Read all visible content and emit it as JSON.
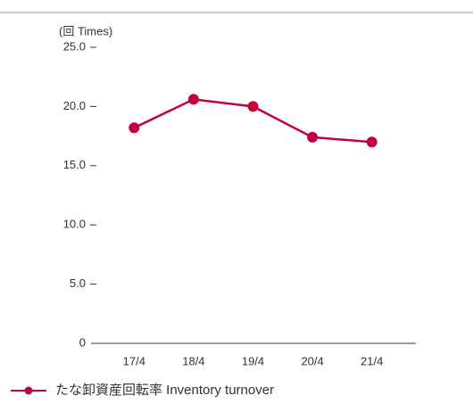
{
  "chart_data": {
    "type": "line",
    "y_unit_label": "(回 Times)",
    "categories": [
      "17/4",
      "18/4",
      "19/4",
      "20/4",
      "21/4"
    ],
    "series": [
      {
        "name": "たな卸資産回転率 Inventory turnover",
        "color": "#c4003d",
        "values": [
          18.2,
          20.6,
          20.0,
          17.4,
          17.0
        ]
      }
    ],
    "ylim": [
      0,
      25
    ],
    "yticks": [
      0,
      {
        "value": 5,
        "label": "5.0"
      },
      {
        "value": 10,
        "label": "10.0"
      },
      {
        "value": 15,
        "label": "15.0"
      },
      {
        "value": 20,
        "label": "20.0"
      },
      {
        "value": 25,
        "label": "25.0"
      }
    ],
    "grid": false
  }
}
